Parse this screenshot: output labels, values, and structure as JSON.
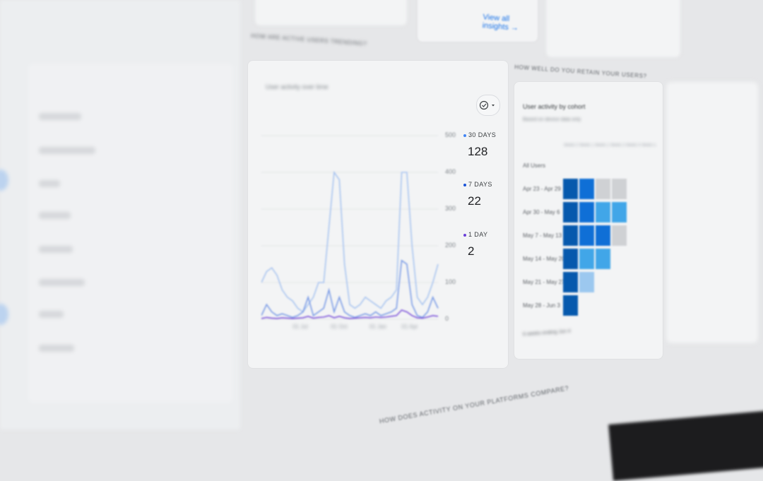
{
  "top": {
    "view_all_insights": "View all insights",
    "arrow": "→"
  },
  "sections": {
    "trending": "How are active users trending?",
    "retention": "How well do you retain your users?",
    "platforms": "How does activity on your platforms compare?"
  },
  "activity_card": {
    "title": "User activity over time",
    "compare_icon": "check-circle-icon",
    "legend": [
      {
        "label": "30 DAYS",
        "value": "128",
        "color": "#4285f4"
      },
      {
        "label": "7 DAYS",
        "value": "22",
        "color": "#1a53d8"
      },
      {
        "label": "1 DAY",
        "value": "2",
        "color": "#6a3fd8"
      }
    ]
  },
  "chart_data": {
    "type": "line",
    "x_ticks": [
      "01 Jul",
      "01 Oct",
      "01 Jan",
      "01 Apr"
    ],
    "y_ticks": [
      "0",
      "100",
      "200",
      "300",
      "400",
      "500"
    ],
    "ylim": [
      0,
      500
    ],
    "grid": true,
    "legend_placement": "right",
    "series": [
      {
        "name": "30 DAYS",
        "color": "#a8c4f0",
        "values": [
          100,
          130,
          140,
          120,
          80,
          60,
          50,
          30,
          20,
          40,
          60,
          100,
          100,
          250,
          400,
          380,
          150,
          40,
          30,
          40,
          60,
          50,
          40,
          30,
          50,
          60,
          80,
          400,
          400,
          200,
          60,
          40,
          60,
          100,
          150
        ]
      },
      {
        "name": "7 DAYS",
        "color": "#7a9be6",
        "values": [
          10,
          40,
          20,
          10,
          15,
          10,
          5,
          10,
          20,
          60,
          10,
          20,
          30,
          80,
          20,
          60,
          20,
          10,
          5,
          10,
          15,
          10,
          20,
          10,
          15,
          20,
          30,
          160,
          150,
          40,
          10,
          5,
          20,
          60,
          30
        ]
      },
      {
        "name": "1 DAY",
        "color": "#7b52d9",
        "values": [
          2,
          5,
          3,
          2,
          4,
          3,
          2,
          3,
          4,
          8,
          3,
          5,
          6,
          10,
          4,
          8,
          4,
          2,
          3,
          4,
          5,
          4,
          6,
          5,
          6,
          8,
          10,
          25,
          20,
          10,
          4,
          3,
          6,
          10,
          8
        ]
      }
    ]
  },
  "cohort_card": {
    "title": "User activity by cohort",
    "subtitle": "Based on device data only",
    "columns": [
      "Week 0",
      "Week 1",
      "Week 2",
      "Week 3",
      "Week 4",
      "Week 5"
    ],
    "all_users_label": "All Users",
    "rows": [
      {
        "label": "Apr 23 - Apr 29",
        "levels": [
          4,
          3,
          0,
          0
        ]
      },
      {
        "label": "Apr 30 - May 6",
        "levels": [
          4,
          3,
          2,
          2
        ]
      },
      {
        "label": "May 7 - May 13",
        "levels": [
          4,
          3,
          3,
          0
        ]
      },
      {
        "label": "May 14 - May 20",
        "levels": [
          4,
          2,
          2
        ]
      },
      {
        "label": "May 21 - May 27",
        "levels": [
          4,
          1
        ]
      },
      {
        "label": "May 28 - Jun 3",
        "levels": [
          4
        ]
      }
    ],
    "level_colors": [
      "#cfd1d4",
      "#9cc8ef",
      "#41a6e8",
      "#0f6fd6",
      "#0659ad"
    ],
    "footer": "6 weeks ending Jun 4"
  }
}
